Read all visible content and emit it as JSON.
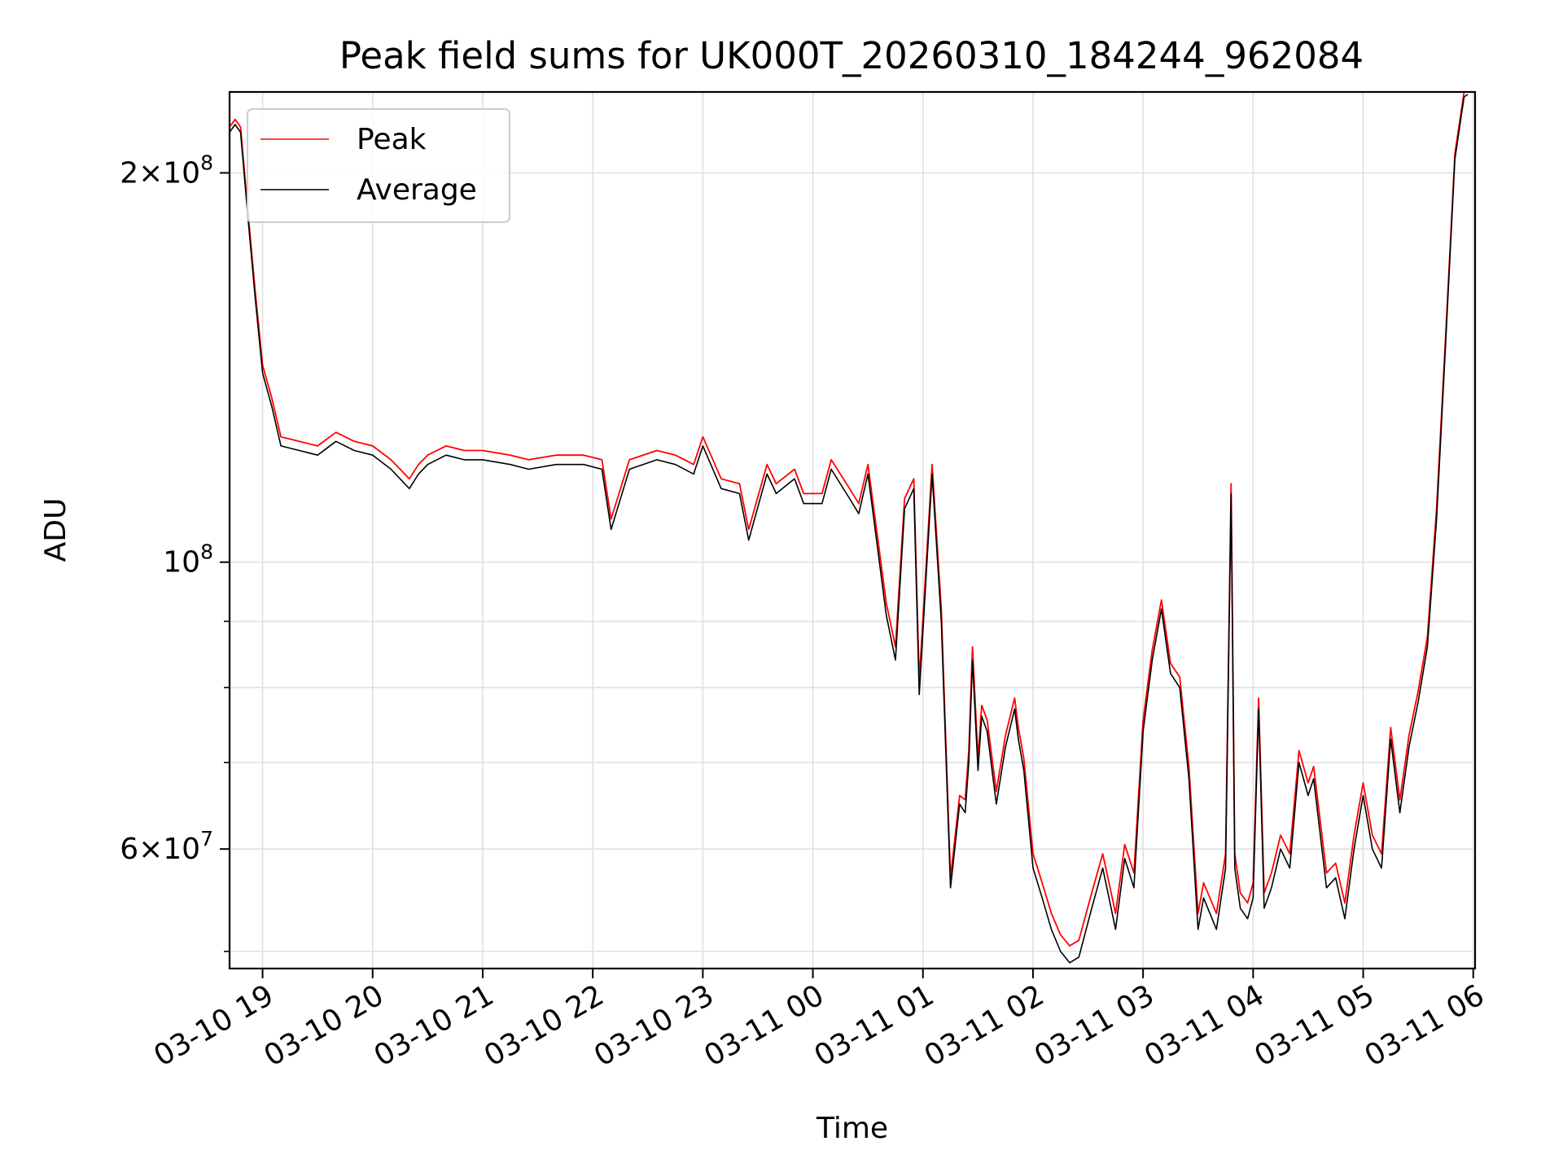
{
  "chart_data": {
    "type": "line",
    "title": "Peak field sums for UK000T_20260310_184244_962084",
    "xlabel": "Time",
    "ylabel": "ADU",
    "yscale": "log",
    "ylim": [
      48500000,
      231000000
    ],
    "xlim": [
      "2026-03-10 18:42",
      "2026-03-11 06:01"
    ],
    "x_ticks": [
      {
        "t": "2026-03-10 19:00",
        "label": "03-10 19"
      },
      {
        "t": "2026-03-10 20:00",
        "label": "03-10 20"
      },
      {
        "t": "2026-03-10 21:00",
        "label": "03-10 21"
      },
      {
        "t": "2026-03-10 22:00",
        "label": "03-10 22"
      },
      {
        "t": "2026-03-10 23:00",
        "label": "03-10 23"
      },
      {
        "t": "2026-03-11 00:00",
        "label": "03-11 00"
      },
      {
        "t": "2026-03-11 01:00",
        "label": "03-11 01"
      },
      {
        "t": "2026-03-11 02:00",
        "label": "03-11 02"
      },
      {
        "t": "2026-03-11 03:00",
        "label": "03-11 03"
      },
      {
        "t": "2026-03-11 04:00",
        "label": "03-11 04"
      },
      {
        "t": "2026-03-11 05:00",
        "label": "03-11 05"
      },
      {
        "t": "2026-03-11 06:00",
        "label": "03-11 06"
      }
    ],
    "y_major_ticks": [
      {
        "v": 60000000,
        "base": "6×10",
        "exp": "7"
      },
      {
        "v": 100000000,
        "base": "10",
        "exp": "8"
      },
      {
        "v": 200000000,
        "base": "2×10",
        "exp": "8"
      }
    ],
    "y_minor_ticks": [
      50000000,
      70000000,
      80000000,
      90000000
    ],
    "grid": true,
    "legend": "top-left",
    "series": [
      {
        "name": "Peak",
        "color": "#ff0000"
      },
      {
        "name": "Average",
        "color": "#000000"
      }
    ],
    "x": [
      "2026-03-10 18:42",
      "2026-03-10 18:45",
      "2026-03-10 18:48",
      "2026-03-10 18:52",
      "2026-03-10 18:56",
      "2026-03-10 19:00",
      "2026-03-10 19:05",
      "2026-03-10 19:10",
      "2026-03-10 19:20",
      "2026-03-10 19:30",
      "2026-03-10 19:40",
      "2026-03-10 19:50",
      "2026-03-10 20:00",
      "2026-03-10 20:10",
      "2026-03-10 20:20",
      "2026-03-10 20:25",
      "2026-03-10 20:30",
      "2026-03-10 20:40",
      "2026-03-10 20:50",
      "2026-03-10 21:00",
      "2026-03-10 21:15",
      "2026-03-10 21:25",
      "2026-03-10 21:40",
      "2026-03-10 21:55",
      "2026-03-10 22:05",
      "2026-03-10 22:10",
      "2026-03-10 22:20",
      "2026-03-10 22:35",
      "2026-03-10 22:45",
      "2026-03-10 22:55",
      "2026-03-10 23:00",
      "2026-03-10 23:10",
      "2026-03-10 23:20",
      "2026-03-10 23:25",
      "2026-03-10 23:35",
      "2026-03-10 23:40",
      "2026-03-10 23:50",
      "2026-03-10 23:55",
      "2026-03-11 00:05",
      "2026-03-11 00:10",
      "2026-03-11 00:20",
      "2026-03-11 00:25",
      "2026-03-11 00:30",
      "2026-03-11 00:40",
      "2026-03-11 00:45",
      "2026-03-11 00:50",
      "2026-03-11 00:55",
      "2026-03-11 00:58",
      "2026-03-11 01:05",
      "2026-03-11 01:10",
      "2026-03-11 01:15",
      "2026-03-11 01:20",
      "2026-03-11 01:23",
      "2026-03-11 01:25",
      "2026-03-11 01:27",
      "2026-03-11 01:30",
      "2026-03-11 01:32",
      "2026-03-11 01:35",
      "2026-03-11 01:40",
      "2026-03-11 01:45",
      "2026-03-11 01:50",
      "2026-03-11 01:52",
      "2026-03-11 01:55",
      "2026-03-11 02:00",
      "2026-03-11 02:05",
      "2026-03-11 02:10",
      "2026-03-11 02:15",
      "2026-03-11 02:20",
      "2026-03-11 02:25",
      "2026-03-11 02:32",
      "2026-03-11 02:38",
      "2026-03-11 02:45",
      "2026-03-11 02:50",
      "2026-03-11 02:55",
      "2026-03-11 03:00",
      "2026-03-11 03:05",
      "2026-03-11 03:10",
      "2026-03-11 03:15",
      "2026-03-11 03:20",
      "2026-03-11 03:25",
      "2026-03-11 03:30",
      "2026-03-11 03:33",
      "2026-03-11 03:40",
      "2026-03-11 03:45",
      "2026-03-11 03:48",
      "2026-03-11 03:50",
      "2026-03-11 03:53",
      "2026-03-11 03:57",
      "2026-03-11 04:00",
      "2026-03-11 04:03",
      "2026-03-11 04:06",
      "2026-03-11 04:10",
      "2026-03-11 04:15",
      "2026-03-11 04:20",
      "2026-03-11 04:25",
      "2026-03-11 04:30",
      "2026-03-11 04:33",
      "2026-03-11 04:40",
      "2026-03-11 04:45",
      "2026-03-11 04:50",
      "2026-03-11 04:55",
      "2026-03-11 05:00",
      "2026-03-11 05:05",
      "2026-03-11 05:10",
      "2026-03-11 05:15",
      "2026-03-11 05:20",
      "2026-03-11 05:25",
      "2026-03-11 05:30",
      "2026-03-11 05:35",
      "2026-03-11 05:40",
      "2026-03-11 05:45",
      "2026-03-11 05:50",
      "2026-03-11 05:55",
      "2026-03-11 05:57"
    ],
    "average": [
      215000000,
      218000000,
      215000000,
      185000000,
      160000000,
      140000000,
      132000000,
      123000000,
      122000000,
      121000000,
      124000000,
      122000000,
      121000000,
      118000000,
      114000000,
      117000000,
      119000000,
      121000000,
      120000000,
      120000000,
      119000000,
      118000000,
      119000000,
      119000000,
      118000000,
      106000000,
      118000000,
      120000000,
      119000000,
      117000000,
      123000000,
      114000000,
      113000000,
      104000000,
      117000000,
      113000000,
      116000000,
      111000000,
      111000000,
      118000000,
      112000000,
      109000000,
      117000000,
      91000000,
      84000000,
      110000000,
      114000000,
      79000000,
      117000000,
      90000000,
      56000000,
      65000000,
      64000000,
      70000000,
      84000000,
      69000000,
      76000000,
      74000000,
      65000000,
      72000000,
      77000000,
      73000000,
      69000000,
      58000000,
      55000000,
      52000000,
      50000000,
      49000000,
      49500000,
      54000000,
      58000000,
      52000000,
      59000000,
      56000000,
      74000000,
      84000000,
      92000000,
      82000000,
      80000000,
      68000000,
      52000000,
      55000000,
      52000000,
      58000000,
      113000000,
      58000000,
      54000000,
      53000000,
      55000000,
      77000000,
      54000000,
      56000000,
      60000000,
      58000000,
      70000000,
      66000000,
      68000000,
      56000000,
      57000000,
      53000000,
      60000000,
      66000000,
      60000000,
      58000000,
      73000000,
      64000000,
      72000000,
      78000000,
      86000000,
      108000000,
      148000000,
      205000000,
      229000000,
      230000000
    ],
    "peak": [
      217000000,
      220000000,
      217000000,
      187000000,
      162000000,
      142000000,
      134000000,
      125000000,
      124000000,
      123000000,
      126000000,
      124000000,
      123000000,
      120000000,
      116000000,
      119000000,
      121000000,
      123000000,
      122000000,
      122000000,
      121000000,
      120000000,
      121000000,
      121000000,
      120000000,
      108000000,
      120000000,
      122000000,
      121000000,
      119000000,
      125000000,
      116000000,
      115000000,
      106000000,
      119000000,
      115000000,
      118000000,
      113000000,
      113000000,
      120000000,
      114000000,
      111000000,
      119000000,
      93000000,
      86000000,
      112000000,
      116000000,
      81000000,
      119000000,
      92000000,
      57000000,
      66000000,
      65500000,
      71500000,
      86000000,
      70500000,
      77500000,
      75500000,
      66500000,
      73500000,
      78500000,
      74500000,
      70500000,
      59500000,
      56500000,
      53500000,
      51500000,
      50500000,
      51000000,
      55500000,
      59500000,
      53500000,
      60500000,
      57500000,
      75500000,
      85500000,
      93500000,
      83500000,
      81500000,
      69500000,
      53500000,
      56500000,
      53500000,
      59500000,
      115000000,
      59500000,
      55500000,
      54500000,
      56500000,
      78500000,
      55500000,
      57500000,
      61500000,
      59500000,
      71500000,
      67500000,
      69500000,
      57500000,
      58500000,
      54500000,
      61500000,
      67500000,
      61500000,
      59500000,
      74500000,
      65500000,
      73500000,
      79500000,
      87500000,
      110000000,
      150000000,
      207000000,
      231000000,
      231000000
    ]
  }
}
